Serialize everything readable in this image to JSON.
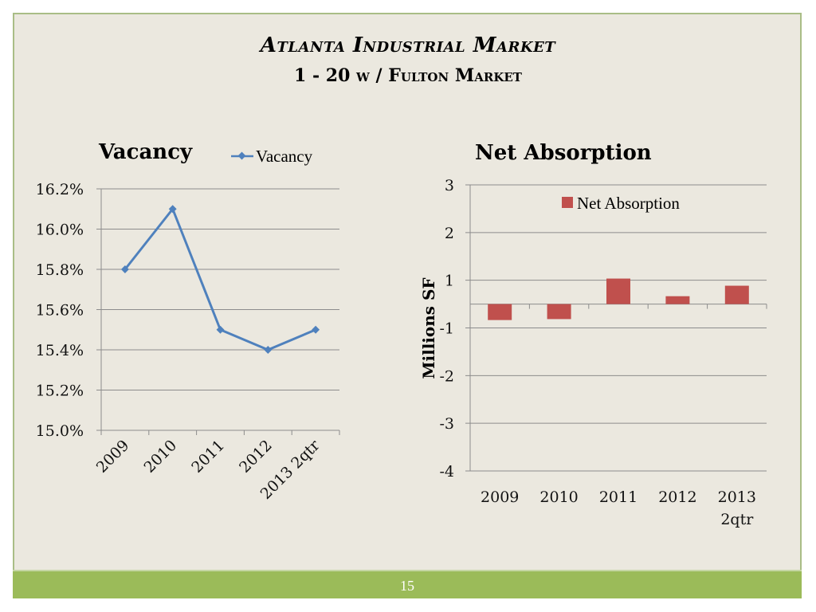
{
  "slide": {
    "title": "Atlanta Industrial Market",
    "subtitle": "1 - 20 w / Fulton Market",
    "page_number": "15",
    "colors": {
      "background": "#ebe8df",
      "accent_green": "#9bbb59",
      "line_blue": "#4f81bd",
      "bar_red": "#c0504d",
      "grid": "#8c8c8c"
    }
  },
  "chart_data": [
    {
      "type": "line",
      "title": "Vacancy",
      "categories": [
        "2009",
        "2010",
        "2011",
        "2012",
        "2013 2qtr"
      ],
      "series": [
        {
          "name": "Vacancy",
          "values": [
            15.8,
            16.1,
            15.5,
            15.4,
            15.5
          ],
          "color": "#4f81bd",
          "marker": "diamond"
        }
      ],
      "xlabel": "",
      "ylabel": "",
      "ylim": [
        15.0,
        16.2
      ],
      "yticks": [
        15.0,
        15.2,
        15.4,
        15.6,
        15.8,
        16.0,
        16.2
      ],
      "ytick_labels": [
        "15.0%",
        "15.2%",
        "15.4%",
        "15.6%",
        "15.8%",
        "16.0%",
        "16.2%"
      ],
      "xtick_rotation": "-45deg",
      "grid": true,
      "legend": {
        "entries": [
          "Vacancy"
        ],
        "placement": "top-right"
      }
    },
    {
      "type": "bar",
      "title": "Net Absorption",
      "categories": [
        "2009",
        "2010",
        "2011",
        "2012",
        "2013 2qtr"
      ],
      "category_labels": [
        [
          "2009"
        ],
        [
          "2010"
        ],
        [
          "2011"
        ],
        [
          "2012"
        ],
        [
          "2013",
          "2qtr"
        ]
      ],
      "series": [
        {
          "name": "Net Absorption",
          "values": [
            -0.67,
            -0.63,
            1.07,
            0.33,
            0.77
          ],
          "color": "#c0504d"
        }
      ],
      "xlabel": "",
      "ylabel": "Millions  SF",
      "ytick_labels": [
        "3",
        "2",
        "1",
        "-1",
        "-2",
        "-3",
        "-4"
      ],
      "ylim": [
        -4,
        3
      ],
      "grid": true,
      "legend": {
        "entries": [
          "Net Absorption"
        ],
        "placement": "top-right"
      }
    }
  ]
}
